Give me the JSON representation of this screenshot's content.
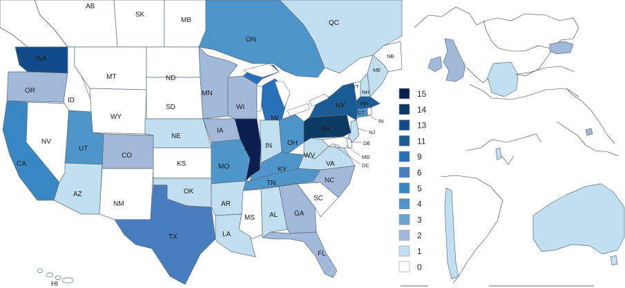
{
  "colors": {
    "15": "#0a1f4e",
    "14": "#0d3b63",
    "13": "#124b8a",
    "11": "#1a5c93",
    "9": "#2a70b8",
    "6": "#4a7dbd",
    "5": "#3a88c3",
    "4": "#4f95c9",
    "3": "#6aa3d2",
    "2": "#a3b9da",
    "1": "#c2dff0",
    "0": "#ffffff"
  },
  "legend": [
    "15",
    "14",
    "13",
    "11",
    "9",
    "6",
    "5",
    "4",
    "3",
    "2",
    "1",
    "0"
  ],
  "regions": [
    {
      "id": "AB",
      "label": "AB",
      "value": 0
    },
    {
      "id": "SK",
      "label": "SK",
      "value": 0
    },
    {
      "id": "MB",
      "label": "MB",
      "value": 0
    },
    {
      "id": "ON",
      "label": "ON",
      "value": 4
    },
    {
      "id": "QC",
      "label": "QC",
      "value": 1
    },
    {
      "id": "NB",
      "label": "NB",
      "value": 0
    },
    {
      "id": "WA",
      "label": "WA",
      "value": 13
    },
    {
      "id": "OR",
      "label": "OR",
      "value": 2
    },
    {
      "id": "CA",
      "label": "CA",
      "value": 5
    },
    {
      "id": "NV",
      "label": "NV",
      "value": 0
    },
    {
      "id": "ID",
      "label": "ID",
      "value": 0
    },
    {
      "id": "MT",
      "label": "MT",
      "value": 0
    },
    {
      "id": "WY",
      "label": "WY",
      "value": 0
    },
    {
      "id": "UT",
      "label": "UT",
      "value": 4
    },
    {
      "id": "AZ",
      "label": "AZ",
      "value": 1
    },
    {
      "id": "CO",
      "label": "CO",
      "value": 2
    },
    {
      "id": "NM",
      "label": "NM",
      "value": 0
    },
    {
      "id": "ND",
      "label": "ND",
      "value": 0
    },
    {
      "id": "SD",
      "label": "SD",
      "value": 0
    },
    {
      "id": "NE",
      "label": "NE",
      "value": 1
    },
    {
      "id": "KS",
      "label": "KS",
      "value": 0
    },
    {
      "id": "OK",
      "label": "OK",
      "value": 1
    },
    {
      "id": "TX",
      "label": "TX",
      "value": 6
    },
    {
      "id": "MN",
      "label": "MN",
      "value": 2
    },
    {
      "id": "IA",
      "label": "IA",
      "value": 2
    },
    {
      "id": "MO",
      "label": "MO",
      "value": 4
    },
    {
      "id": "AR",
      "label": "AR",
      "value": 1
    },
    {
      "id": "LA",
      "label": "LA",
      "value": 1
    },
    {
      "id": "WI",
      "label": "WI",
      "value": 2
    },
    {
      "id": "IL",
      "label": "IL",
      "value": 15
    },
    {
      "id": "MI",
      "label": "MI",
      "value": 9
    },
    {
      "id": "IN",
      "label": "IN",
      "value": 1
    },
    {
      "id": "OH",
      "label": "OH",
      "value": 4
    },
    {
      "id": "KY",
      "label": "KY",
      "value": 4
    },
    {
      "id": "TN",
      "label": "TN",
      "value": 4
    },
    {
      "id": "MS",
      "label": "MS",
      "value": 0
    },
    {
      "id": "AL",
      "label": "AL",
      "value": 1
    },
    {
      "id": "GA",
      "label": "GA",
      "value": 2
    },
    {
      "id": "FL",
      "label": "FL",
      "value": 2
    },
    {
      "id": "SC",
      "label": "SC",
      "value": 0
    },
    {
      "id": "NC",
      "label": "NC",
      "value": 2
    },
    {
      "id": "VA",
      "label": "VA",
      "value": 1
    },
    {
      "id": "WV",
      "label": "WV",
      "value": 1
    },
    {
      "id": "PA",
      "label": "PA",
      "value": 14
    },
    {
      "id": "NY",
      "label": "NY",
      "value": 11
    },
    {
      "id": "VT",
      "label": "VT",
      "value": 0
    },
    {
      "id": "NH",
      "label": "NH",
      "value": 1
    },
    {
      "id": "ME",
      "label": "ME",
      "value": 1
    },
    {
      "id": "MA",
      "label": "MA",
      "value": 11
    },
    {
      "id": "CT",
      "label": "CT",
      "value": 4
    },
    {
      "id": "RI",
      "label": "RI",
      "value": 0
    },
    {
      "id": "NJ",
      "label": "NJ",
      "value": 1
    },
    {
      "id": "DE",
      "label": "DE",
      "value": 0
    },
    {
      "id": "MD",
      "label": "MD",
      "value": 0
    },
    {
      "id": "DC",
      "label": "DC",
      "value": 0
    },
    {
      "id": "HI",
      "label": "HI",
      "value": 0
    }
  ],
  "world": [
    {
      "id": "GB",
      "value": 2
    },
    {
      "id": "IE",
      "value": 2
    },
    {
      "id": "DE",
      "value": 1
    },
    {
      "id": "LV",
      "value": 2
    },
    {
      "id": "IL",
      "value": 1
    },
    {
      "id": "SG",
      "value": 2
    },
    {
      "id": "CL",
      "value": 1
    },
    {
      "id": "AU",
      "value": 1
    }
  ]
}
